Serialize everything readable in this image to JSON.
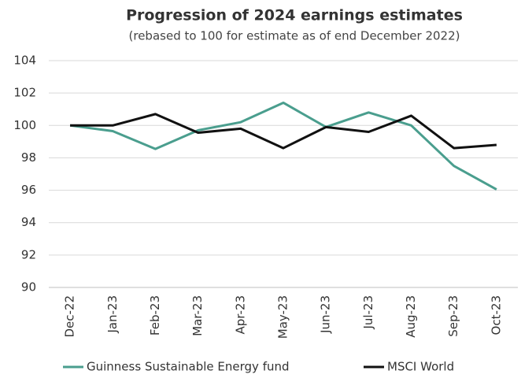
{
  "chart_data": {
    "type": "line",
    "title": "Progression of 2024 earnings estimates",
    "subtitle": "(rebased to 100 for estimate as of end December 2022)",
    "categories": [
      "Dec-22",
      "Jan-23",
      "Feb-23",
      "Mar-23",
      "Apr-23",
      "May-23",
      "Jun-23",
      "Jul-23",
      "Aug-23",
      "Sep-23",
      "Oct-23"
    ],
    "series": [
      {
        "name": "Guinness Sustainable Energy fund",
        "color": "#4a9e8e",
        "values": [
          100,
          99.65,
          98.55,
          99.7,
          100.2,
          101.4,
          99.9,
          100.8,
          100.0,
          97.5,
          96.05
        ]
      },
      {
        "name": "MSCI World",
        "color": "#111111",
        "values": [
          100,
          100,
          100.7,
          99.55,
          99.8,
          98.6,
          99.9,
          99.6,
          100.6,
          98.6,
          98.8
        ]
      }
    ],
    "ylim": [
      90,
      104
    ],
    "yticks": [
      90,
      92,
      94,
      96,
      98,
      100,
      102,
      104
    ],
    "grid": true
  }
}
